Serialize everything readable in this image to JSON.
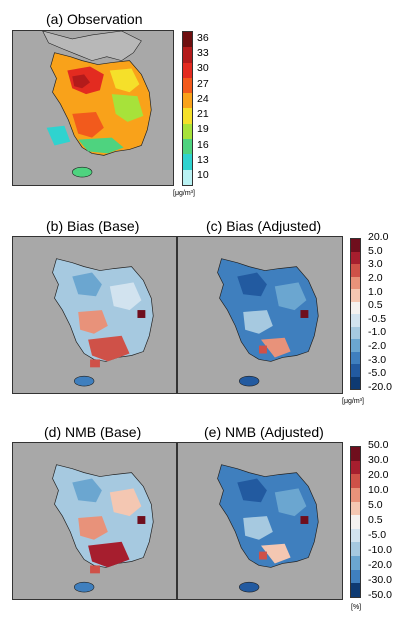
{
  "panels": {
    "a": {
      "title": "(a) Observation"
    },
    "b": {
      "title": "(b) Bias (Base)"
    },
    "c": {
      "title": "(c) Bias (Adjusted)"
    },
    "d": {
      "title": "(d) NMB (Base)"
    },
    "e": {
      "title": "(e) NMB (Adjusted)"
    }
  },
  "legends": {
    "observation": {
      "unit": "[μg/m³]",
      "ticks": [
        "36",
        "33",
        "30",
        "27",
        "24",
        "21",
        "19",
        "16",
        "13",
        "10"
      ],
      "colors": [
        "#6e0f10",
        "#b31b1b",
        "#e32b20",
        "#f25a1c",
        "#f9a21a",
        "#f5e02a",
        "#a7e23a",
        "#4ed37f",
        "#2fd3cf",
        "#b9f2f3"
      ]
    },
    "bias": {
      "unit": "[μg/m³]",
      "ticks": [
        "20.0",
        "5.0",
        "3.0",
        "2.0",
        "1.0",
        "0.5",
        "-0.5",
        "-1.0",
        "-2.0",
        "-3.0",
        "-5.0",
        "-20.0"
      ],
      "colors": [
        "#6f0e1d",
        "#a61e2e",
        "#cf5148",
        "#e8927a",
        "#f4c7b2",
        "#f4f2f0",
        "#d2e3ef",
        "#a6c9e0",
        "#6ba6d0",
        "#3f7fbe",
        "#225aa0",
        "#0e3a72"
      ]
    },
    "nmb": {
      "unit": "[%]",
      "ticks": [
        "50.0",
        "30.0",
        "20.0",
        "10.0",
        "5.0",
        "0.5",
        "-5.0",
        "-10.0",
        "-20.0",
        "-30.0",
        "-50.0"
      ],
      "colors": [
        "#6f0e1d",
        "#a61e2e",
        "#cf5148",
        "#e8927a",
        "#f4c7b2",
        "#f4f2f0",
        "#d2e3ef",
        "#a6c9e0",
        "#6ba6d0",
        "#3f7fbe",
        "#0e3a72"
      ]
    }
  }
}
